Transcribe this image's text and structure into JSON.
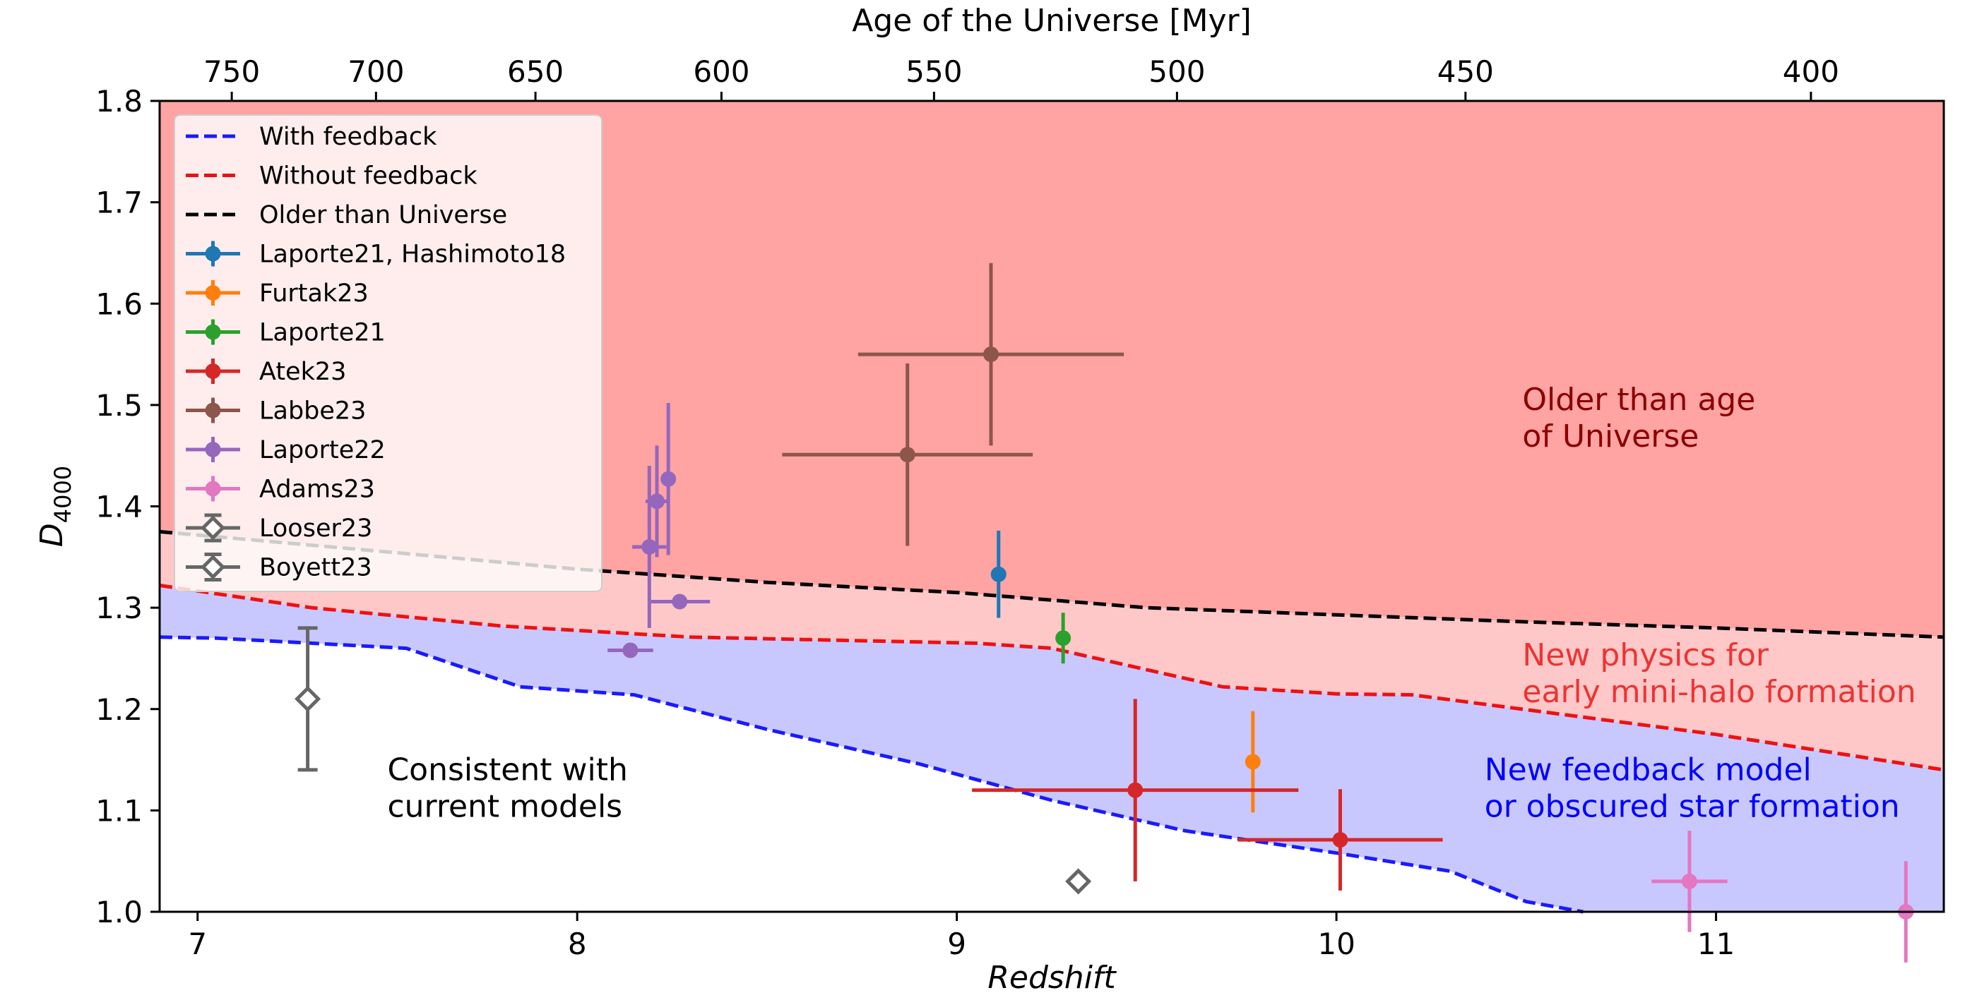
{
  "chart_data": {
    "type": "scatter",
    "xlabel": "Redshift",
    "ylabel_base": "D",
    "ylabel_sub": "4000",
    "top_xlabel": "Age of the Universe [Myr]",
    "xlim": [
      6.9,
      11.6
    ],
    "ylim": [
      1.0,
      1.8
    ],
    "x_ticks": [
      7,
      8,
      9,
      10,
      11
    ],
    "y_ticks": [
      1.0,
      1.1,
      1.2,
      1.3,
      1.4,
      1.5,
      1.6,
      1.7,
      1.8
    ],
    "top_ticks": [
      {
        "label": "750",
        "z": 7.09
      },
      {
        "label": "700",
        "z": 7.47
      },
      {
        "label": "650",
        "z": 7.89
      },
      {
        "label": "600",
        "z": 8.38
      },
      {
        "label": "550",
        "z": 8.94
      },
      {
        "label": "500",
        "z": 9.58
      },
      {
        "label": "450",
        "z": 10.34
      },
      {
        "label": "400",
        "z": 11.25
      }
    ],
    "lines": [
      {
        "name": "With feedback",
        "color": "#1a1aff",
        "x": [
          6.9,
          7.05,
          7.3,
          7.55,
          7.85,
          8.15,
          8.5,
          8.9,
          9.25,
          9.6,
          10.0,
          10.3,
          10.5,
          10.65
        ],
        "y": [
          1.271,
          1.27,
          1.265,
          1.26,
          1.222,
          1.214,
          1.18,
          1.146,
          1.11,
          1.08,
          1.058,
          1.04,
          1.01,
          1.0
        ]
      },
      {
        "name": "Without feedback",
        "color": "#ee1111",
        "x": [
          6.9,
          7.3,
          7.8,
          8.3,
          9.05,
          9.25,
          9.7,
          10.0,
          10.2,
          11.0,
          11.6
        ],
        "y": [
          1.322,
          1.3,
          1.282,
          1.271,
          1.265,
          1.26,
          1.222,
          1.215,
          1.214,
          1.175,
          1.14
        ]
      },
      {
        "name": "Older than Universe",
        "color": "#000000",
        "x": [
          6.9,
          7.5,
          8.0,
          8.5,
          9.0,
          9.5,
          10.0,
          10.5,
          11.0,
          11.6
        ],
        "y": [
          1.375,
          1.355,
          1.338,
          1.325,
          1.315,
          1.3,
          1.293,
          1.286,
          1.28,
          1.271
        ]
      }
    ],
    "series": [
      {
        "name": "Laporte21, Hashimoto18",
        "color": "#1f77b4",
        "marker": "circle",
        "points": [
          {
            "x": 9.11,
            "y": 1.333,
            "xerr": 0,
            "yerr": 0.043
          }
        ]
      },
      {
        "name": "Furtak23",
        "color": "#ff7f0e",
        "marker": "circle",
        "points": [
          {
            "x": 9.78,
            "y": 1.148,
            "xerr": 0,
            "yerr": 0.05
          }
        ]
      },
      {
        "name": "Laporte21",
        "color": "#2ca02c",
        "marker": "circle",
        "points": [
          {
            "x": 9.28,
            "y": 1.27,
            "xerr": 0,
            "yerr": 0.025
          }
        ]
      },
      {
        "name": "Atek23",
        "color": "#d62728",
        "marker": "circle",
        "points": [
          {
            "x": 9.47,
            "y": 1.12,
            "xerr": 0.43,
            "yerr": 0.09
          },
          {
            "x": 10.01,
            "y": 1.071,
            "xerr": 0.27,
            "yerr": 0.05
          }
        ]
      },
      {
        "name": "Labbe23",
        "color": "#8c564b",
        "marker": "circle",
        "points": [
          {
            "x": 9.09,
            "y": 1.55,
            "xerr": 0.35,
            "yerr": 0.09
          },
          {
            "x": 8.87,
            "y": 1.451,
            "xerr": 0.33,
            "yerr": 0.09
          }
        ]
      },
      {
        "name": "Laporte22",
        "color": "#9467bd",
        "marker": "circle",
        "points": [
          {
            "x": 8.24,
            "y": 1.427,
            "xerr": 0,
            "yerr": 0.075
          },
          {
            "x": 8.21,
            "y": 1.405,
            "xerr": 0.03,
            "yerr": 0.055
          },
          {
            "x": 8.19,
            "y": 1.36,
            "xerr": 0.045,
            "yerr": 0.08
          },
          {
            "x": 8.27,
            "y": 1.306,
            "xerr": 0.08,
            "yerr": 0
          },
          {
            "x": 8.14,
            "y": 1.258,
            "xerr": 0.06,
            "yerr": 0
          }
        ]
      },
      {
        "name": "Adams23",
        "color": "#e377c2",
        "marker": "circle",
        "points": [
          {
            "x": 10.93,
            "y": 1.03,
            "xerr": 0.1,
            "yerr": 0.05
          },
          {
            "x": 11.5,
            "y": 1.0,
            "xerr": 0,
            "yerr": 0.05
          }
        ]
      },
      {
        "name": "Looser23",
        "color": "#666666",
        "marker": "diamond-open",
        "points": [
          {
            "x": 7.29,
            "y": 1.21,
            "xerr": 0,
            "yerr": 0.07
          }
        ]
      },
      {
        "name": "Boyett23",
        "color": "#666666",
        "marker": "diamond-open",
        "points": [
          {
            "x": 9.32,
            "y": 1.03,
            "xerr": 0,
            "yerr": 0
          }
        ]
      }
    ],
    "region_labels": [
      {
        "id": "older",
        "lines": [
          "Older than age",
          "of Universe"
        ],
        "color": "#8b0000",
        "x": 10.49,
        "y": 1.495
      },
      {
        "id": "physics",
        "lines": [
          "New physics for",
          "early mini-halo formation"
        ],
        "color": "#ee3333",
        "x": 10.49,
        "y": 1.243
      },
      {
        "id": "feedback",
        "lines": [
          "New feedback model",
          "or obscured star formation"
        ],
        "color": "#0000ff",
        "x": 10.39,
        "y": 1.13
      },
      {
        "id": "consistent",
        "lines": [
          "Consistent with",
          "current models"
        ],
        "color": "#000000",
        "x": 7.5,
        "y": 1.13
      }
    ],
    "fill_colors": {
      "top": "#ffa3a3",
      "middle": "#ffc8c8",
      "bottom": "#c8c8ff"
    },
    "legend_position": "top-left"
  }
}
